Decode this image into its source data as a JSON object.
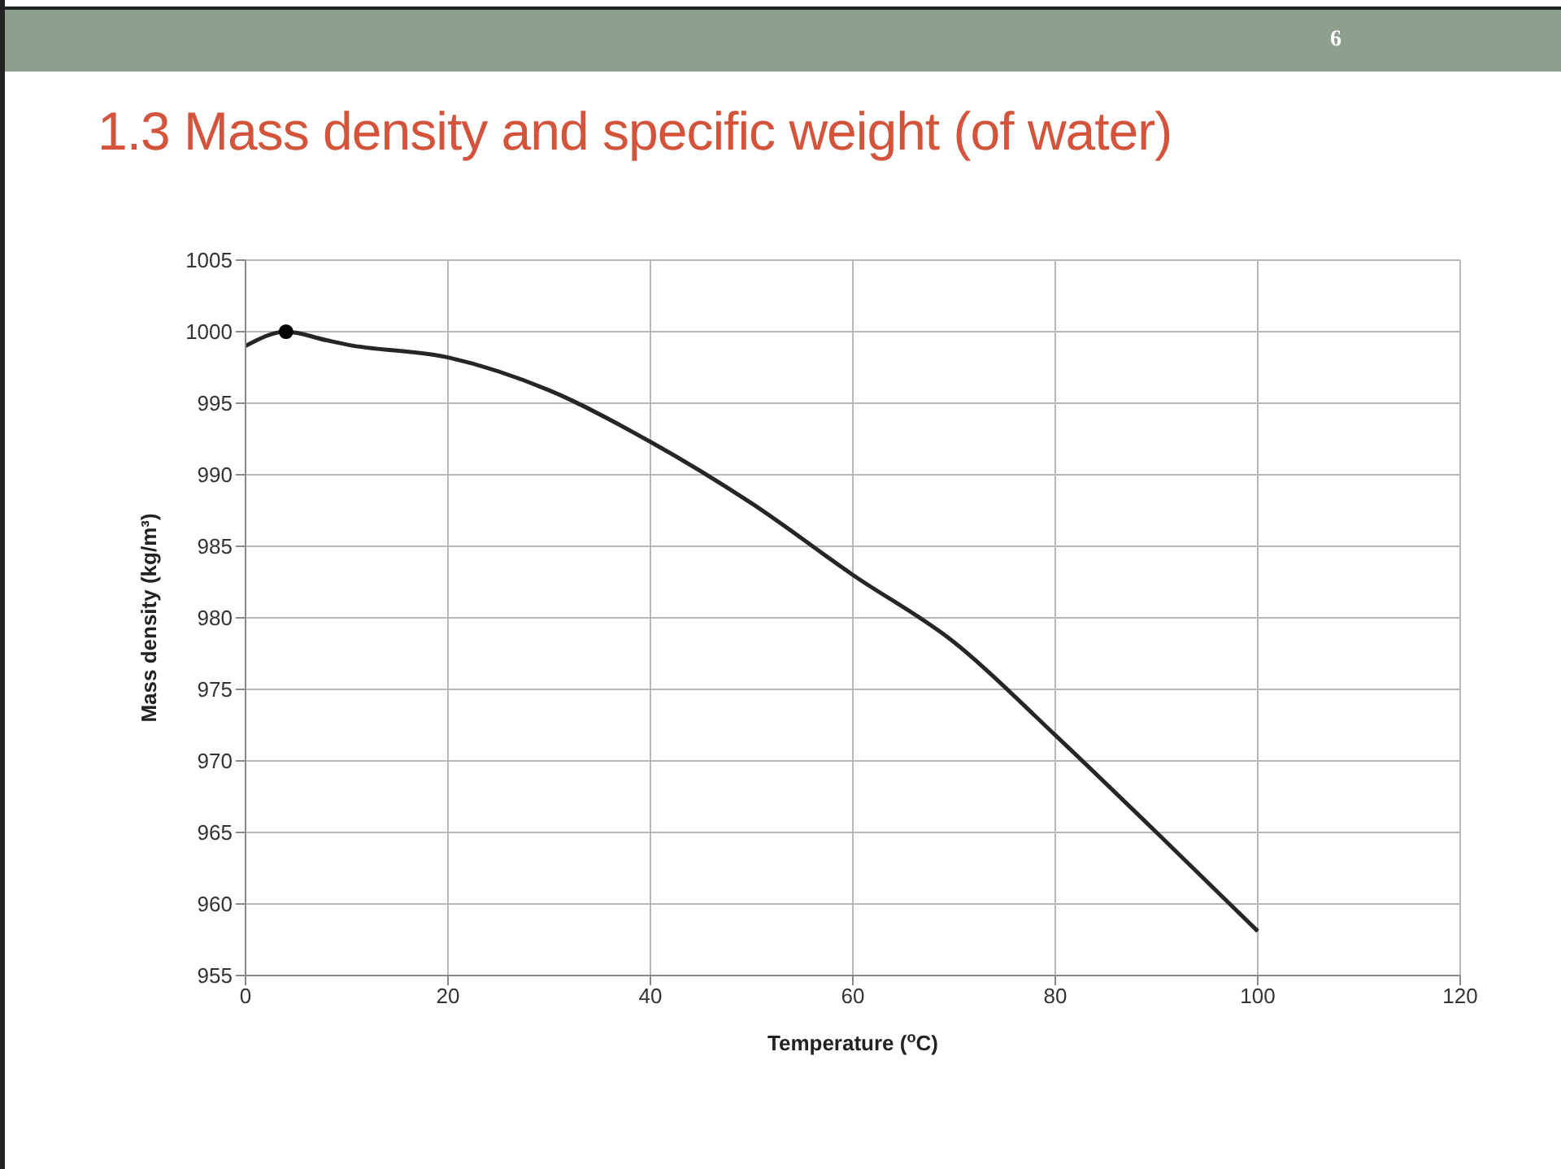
{
  "chart_data": {
    "type": "line",
    "title": "1.3 Mass density and specific weight (of water)",
    "xlabel": "Temperature ($^{o}$C)",
    "ylabel": "Mass density (kg/m³)",
    "annotations": [
      "6"
    ],
    "series": [
      {
        "color": "#262626",
        "marker": "none",
        "x": [
          0,
          4,
          8,
          10,
          20,
          30,
          40,
          50,
          60,
          70,
          80,
          90,
          100
        ],
        "values": [
          999,
          1000,
          999.4,
          999.1,
          998.2,
          995.9,
          992.3,
          988,
          983,
          978.3,
          971.8,
          965,
          958.1
        ]
      },
      {
        "type": "scatter",
        "color": "#000000",
        "marker": "circle",
        "x": [
          4
        ],
        "values": [
          1000
        ]
      }
    ],
    "xlim": [
      0,
      120
    ],
    "xticks": [
      0,
      20,
      40,
      60,
      80,
      100,
      120
    ],
    "ylim": [
      955,
      1005
    ],
    "yticks": [
      955,
      960,
      965,
      970,
      975,
      980,
      985,
      990,
      995,
      1000,
      1005
    ],
    "grid": true
  }
}
